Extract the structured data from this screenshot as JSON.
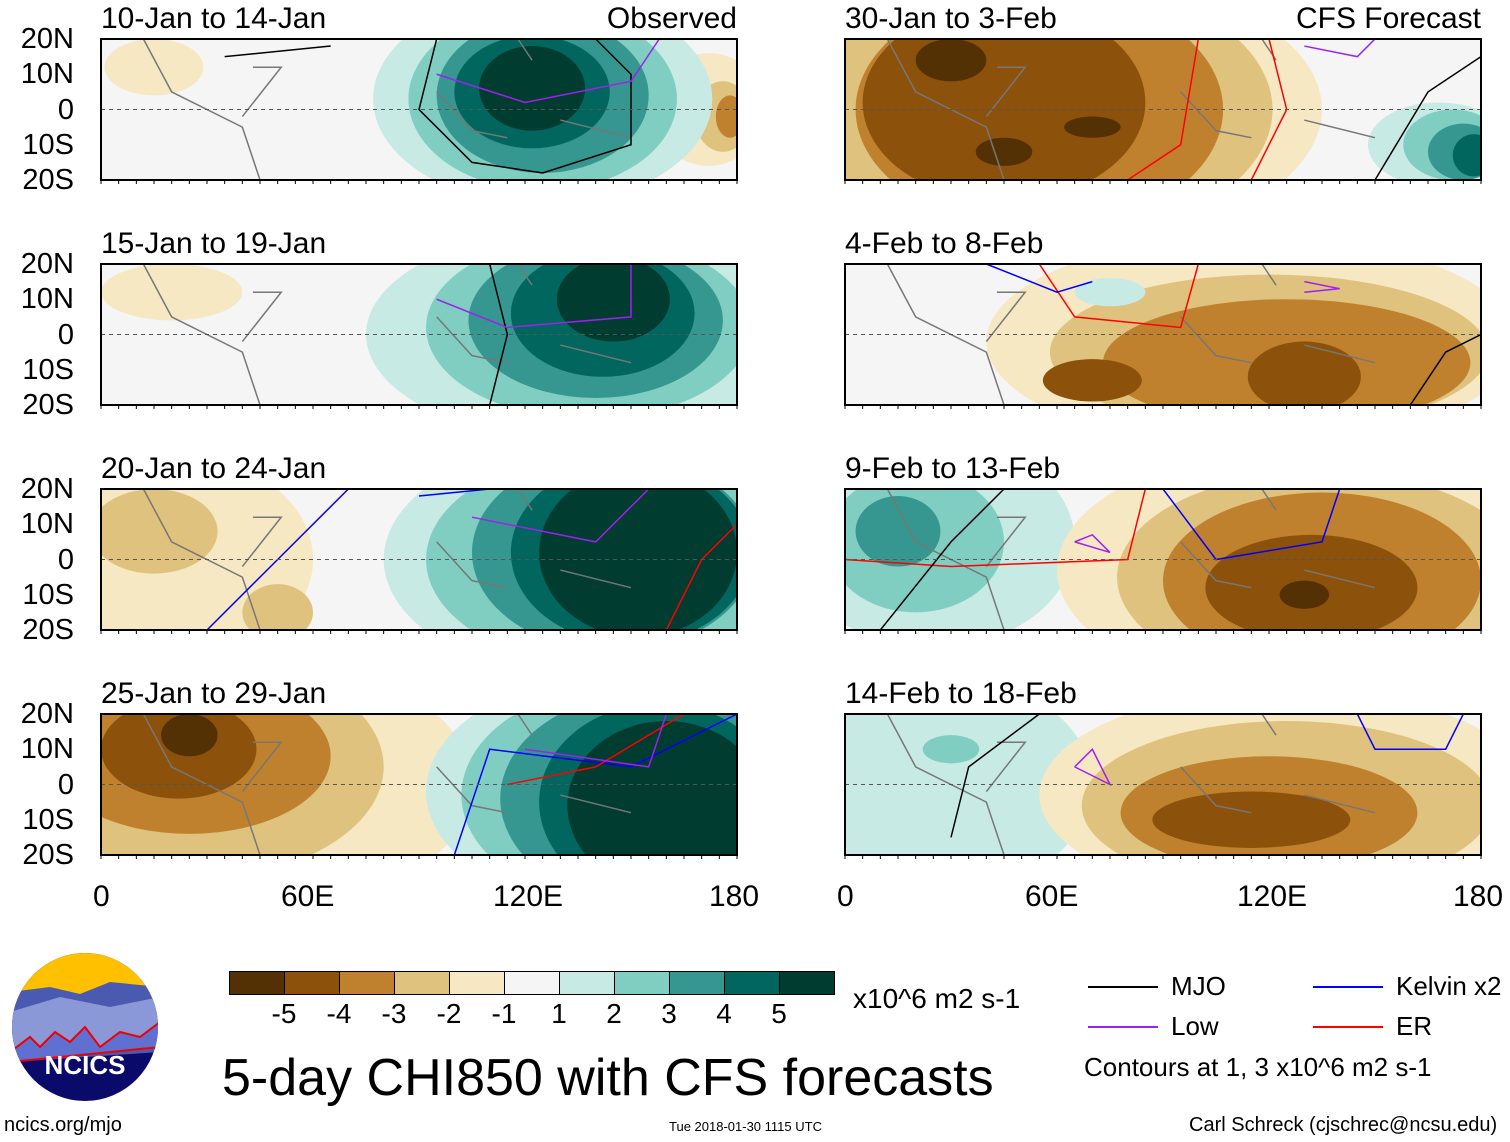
{
  "chart_data": {
    "type": "heatmap",
    "title": "5-day CHI850 with CFS forecasts",
    "units": "x10^6 m2 s-1",
    "x_range": [
      0,
      180
    ],
    "y_range": [
      -20,
      20
    ],
    "x_ticks": [
      "0",
      "60E",
      "120E",
      "180"
    ],
    "y_ticks": [
      "20N",
      "10N",
      "0",
      "10S",
      "20S"
    ],
    "column_labels": [
      "Observed",
      "CFS Forecast"
    ],
    "panels": [
      {
        "title": "10-Jan to 14-Jan",
        "column": "Observed"
      },
      {
        "title": "15-Jan to 19-Jan",
        "column": "Observed"
      },
      {
        "title": "20-Jan to 24-Jan",
        "column": "Observed"
      },
      {
        "title": "25-Jan to 29-Jan",
        "column": "Observed"
      },
      {
        "title": "30-Jan to 3-Feb",
        "column": "CFS Forecast"
      },
      {
        "title": "4-Feb to 8-Feb",
        "column": "CFS Forecast"
      },
      {
        "title": "9-Feb to 13-Feb",
        "column": "CFS Forecast"
      },
      {
        "title": "14-Feb to 18-Feb",
        "column": "CFS Forecast"
      }
    ],
    "colorbar": {
      "labels": [
        "-5",
        "-4",
        "-3",
        "-2",
        "-1",
        "1",
        "2",
        "3",
        "4",
        "5"
      ],
      "colors": [
        "#543005",
        "#8c510a",
        "#bf812d",
        "#dfc27d",
        "#f6e8c3",
        "#f5f5f5",
        "#c7eae5",
        "#80cdc1",
        "#35978f",
        "#01665e",
        "#003c30"
      ]
    },
    "legend": [
      {
        "label": "MJO",
        "color": "#000000"
      },
      {
        "label": "Kelvin x2",
        "color": "#0000ff"
      },
      {
        "label": "Low",
        "color": "#a020f0"
      },
      {
        "label": "ER",
        "color": "#ff0000"
      }
    ],
    "contour_note": "Contours at 1, 3 x10^6 m2 s-1"
  },
  "footer": {
    "logo_text": "NCICS",
    "url": "ncics.org/mjo",
    "timestamp": "Tue 2018-01-30 1115 UTC",
    "author": "Carl Schreck (cjschrec@ncsu.edu)"
  }
}
